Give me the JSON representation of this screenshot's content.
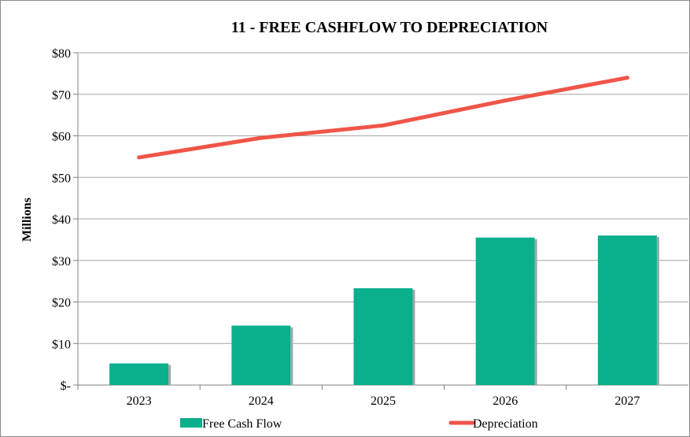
{
  "chart_data": {
    "type": "bar",
    "title": "11 - FREE CASHFLOW TO DEPRECIATION",
    "ylabel": "Millions",
    "xlabel": "",
    "categories": [
      "2023",
      "2024",
      "2025",
      "2026",
      "2027"
    ],
    "ylim": [
      0,
      80
    ],
    "y_ticks": [
      0,
      10,
      20,
      30,
      40,
      50,
      60,
      70,
      80
    ],
    "y_tick_labels": [
      "$-",
      "$10",
      "$20",
      "$30",
      "$40",
      "$50",
      "$60",
      "$70",
      "$80"
    ],
    "grid": true,
    "legend_position": "bottom",
    "series": [
      {
        "name": "Free Cash Flow",
        "kind": "bar",
        "color": "#0aaf8c",
        "values": [
          5.2,
          14.3,
          23.3,
          35.5,
          36.0
        ]
      },
      {
        "name": "Depreciation",
        "kind": "line",
        "color": "#ef5548",
        "values": [
          54.8,
          59.5,
          62.5,
          68.5,
          74.0
        ]
      }
    ]
  }
}
